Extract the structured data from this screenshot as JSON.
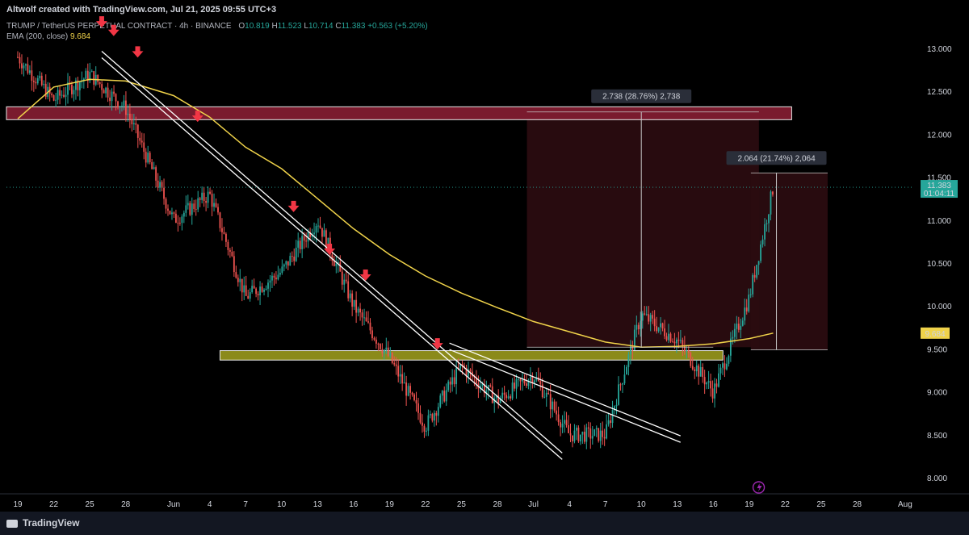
{
  "header": {
    "credit": "Altwolf created with TradingView.com, Jul 21, 2025 09:55 UTC+3",
    "symbol": "TRUMP / TetherUS PERPETUAL CONTRACT · 4h · BINANCE",
    "o_label": "O",
    "o_value": "10.819",
    "h_label": "H",
    "h_value": "11.523",
    "l_label": "L",
    "l_value": "10.714",
    "c_label": "C",
    "c_value": "11.383",
    "change": "+0.563 (+5.20%)",
    "ema_label": "EMA (200, close)",
    "ema_value": "9.684"
  },
  "footer": {
    "brand": "TradingView"
  },
  "colors": {
    "background": "#000000",
    "up": "#26a69a",
    "down": "#ef5350",
    "ema": "#f0d34a",
    "resistance_zone": "#7a1b2e",
    "support_zone": "#8b8a1a",
    "arrow": "#f23645"
  },
  "chart_data": {
    "type": "line",
    "y_ticks": [
      "13.000",
      "12.500",
      "12.000",
      "11.500",
      "11.000",
      "10.500",
      "10.000",
      "9.500",
      "9.000",
      "8.500",
      "8.000"
    ],
    "ylim": [
      7.65,
      13.35
    ],
    "x_ticks": [
      "19",
      "22",
      "25",
      "28",
      "Jun",
      "4",
      "7",
      "10",
      "13",
      "16",
      "19",
      "22",
      "25",
      "28",
      "Jul",
      "4",
      "7",
      "10",
      "13",
      "16",
      "19",
      "22",
      "25",
      "28",
      "Aug"
    ],
    "price_series": {
      "name": "",
      "x": [
        "May 19",
        "May 22",
        "May 25",
        "May 28",
        "Jun 1",
        "Jun 4",
        "Jun 7",
        "Jun 10",
        "Jun 13",
        "Jun 16",
        "Jun 19",
        "Jun 22",
        "Jun 25",
        "Jun 28",
        "Jul 1",
        "Jul 4",
        "Jul 7",
        "Jul 10",
        "Jul 13",
        "Jul 16",
        "Jul 19",
        "Jul 21"
      ],
      "values": [
        12.9,
        12.4,
        12.7,
        12.3,
        11.0,
        11.3,
        10.1,
        10.4,
        11.0,
        10.0,
        9.4,
        8.6,
        9.3,
        8.9,
        9.2,
        8.5,
        8.5,
        9.9,
        9.6,
        9.0,
        10.1,
        11.38
      ]
    },
    "ema_series": {
      "name": "EMA (200, close)",
      "x": [
        "May 19",
        "May 22",
        "May 25",
        "May 28",
        "Jun 1",
        "Jun 4",
        "Jun 7",
        "Jun 10",
        "Jun 13",
        "Jun 16",
        "Jun 19",
        "Jun 22",
        "Jun 25",
        "Jun 28",
        "Jul 1",
        "Jul 4",
        "Jul 7",
        "Jul 10",
        "Jul 13",
        "Jul 16",
        "Jul 19",
        "Jul 21"
      ],
      "values": [
        12.18,
        12.55,
        12.64,
        12.62,
        12.45,
        12.2,
        11.85,
        11.6,
        11.25,
        10.9,
        10.6,
        10.35,
        10.15,
        9.98,
        9.82,
        9.7,
        9.58,
        9.52,
        9.53,
        9.56,
        9.62,
        9.684
      ]
    },
    "last_price": {
      "value": "11.383",
      "countdown": "01:04:11"
    },
    "ema_tag": "9.684",
    "zones": [
      {
        "name": "resistance",
        "y_range": [
          12.17,
          12.32
        ]
      },
      {
        "name": "support",
        "y_range": [
          9.37,
          9.48
        ]
      }
    ],
    "measurements": [
      {
        "label": "2.738 (28.76%) 2,738",
        "from": 9.52,
        "to": 12.26
      },
      {
        "label": "2.064 (21.74%) 2,064",
        "from": 9.49,
        "to": 11.55
      }
    ],
    "trendlines": [
      {
        "from": [
          "May 26",
          12.93
        ],
        "to": [
          "Jul 3",
          8.25
        ]
      },
      {
        "from": [
          "Jun 24",
          9.53
        ],
        "to": [
          "Jul 13",
          8.45
        ]
      }
    ],
    "arrow_marks": [
      {
        "x": "May 26",
        "y": 13.3
      },
      {
        "x": "May 27",
        "y": 13.2
      },
      {
        "x": "May 29",
        "y": 12.95
      },
      {
        "x": "Jun 3",
        "y": 12.2
      },
      {
        "x": "Jun 11",
        "y": 11.15
      },
      {
        "x": "Jun 14",
        "y": 10.65
      },
      {
        "x": "Jun 17",
        "y": 10.35
      },
      {
        "x": "Jun 23",
        "y": 9.55
      }
    ],
    "grid": false,
    "legend": "top-left"
  }
}
